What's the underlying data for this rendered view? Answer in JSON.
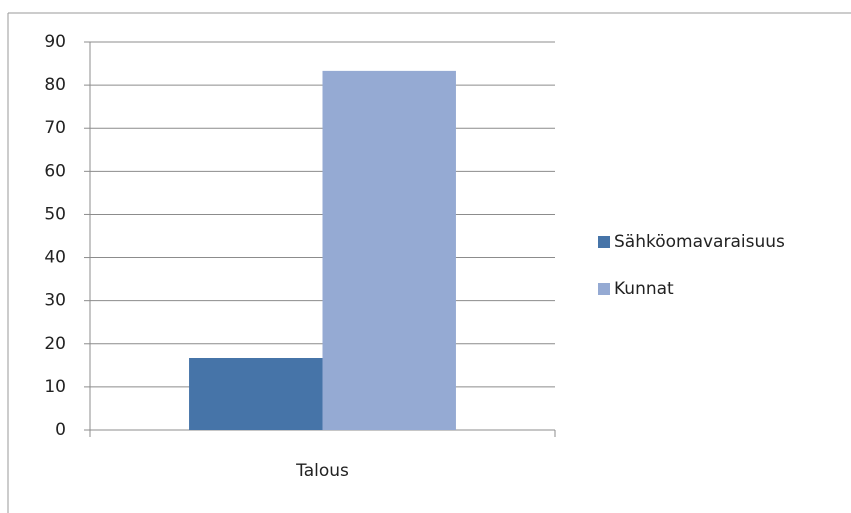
{
  "chart_data": {
    "type": "bar",
    "categories": [
      "Talous"
    ],
    "series": [
      {
        "name": "Sähköomavaraisuus",
        "color": "#4674a8",
        "values": [
          16.7
        ]
      },
      {
        "name": "Kunnat",
        "color": "#95aad3",
        "values": [
          83.3
        ]
      }
    ],
    "ylim": [
      0,
      90
    ],
    "yticks": [
      0,
      10,
      20,
      30,
      40,
      50,
      60,
      70,
      80,
      90
    ],
    "grid": true,
    "legend": "right"
  }
}
